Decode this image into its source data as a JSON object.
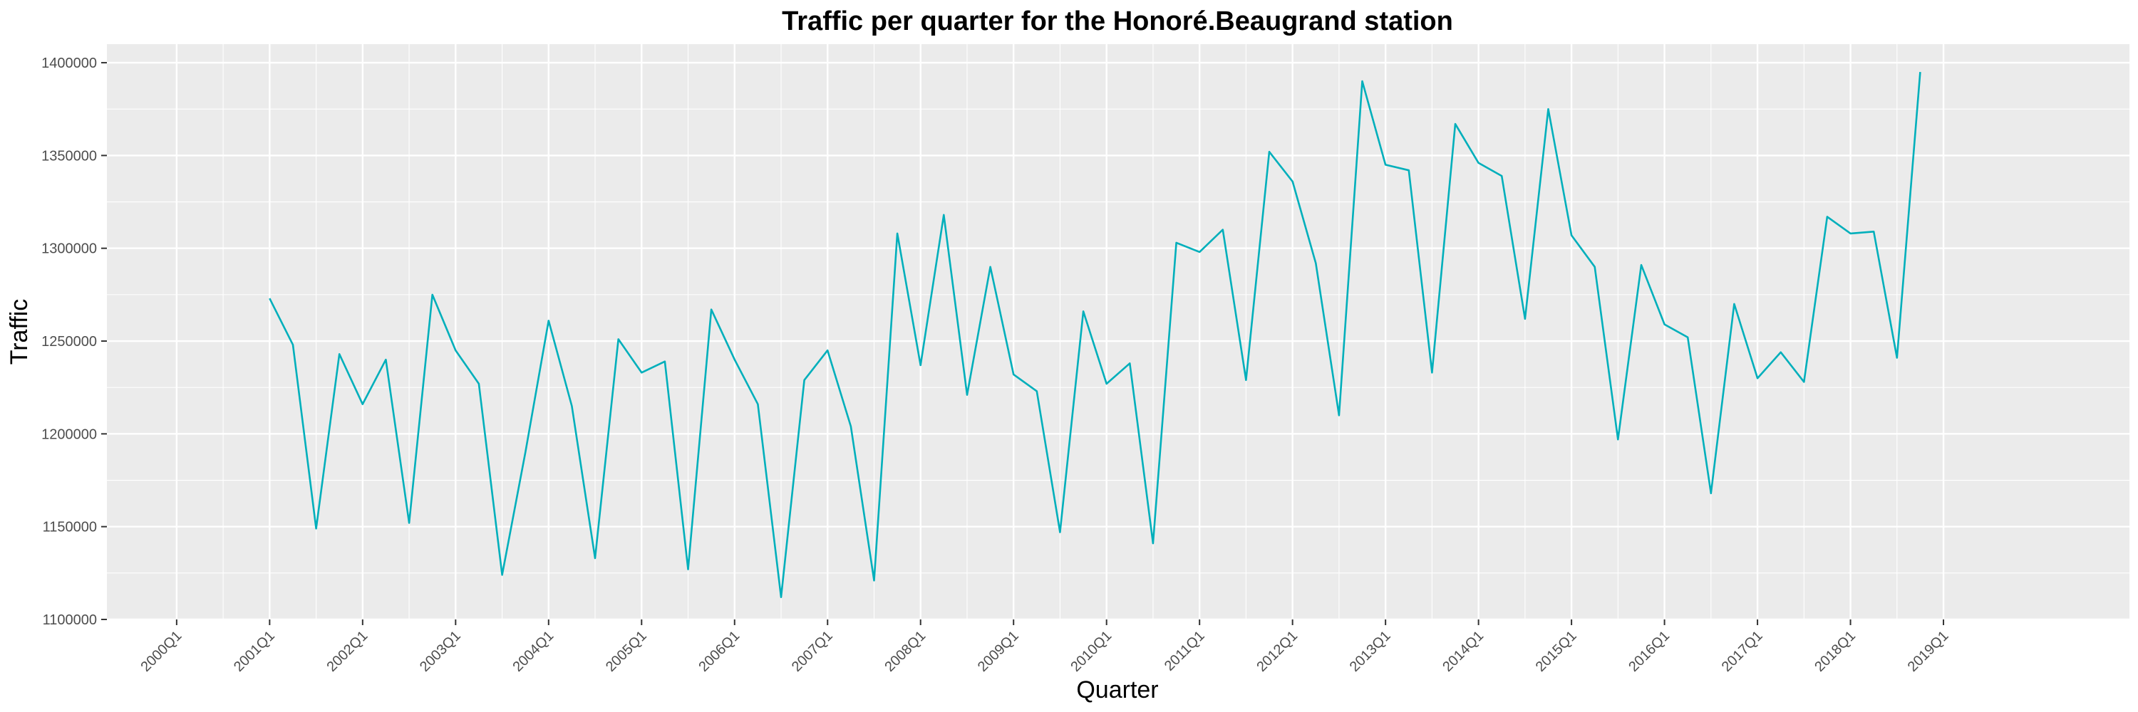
{
  "chart_data": {
    "type": "line",
    "title": "Traffic per quarter for the Honoré.Beaugrand station",
    "xlabel": "Quarter",
    "ylabel": "Traffic",
    "ylim": [
      1100000,
      1410000
    ],
    "y_ticks": [
      1100000,
      1150000,
      1200000,
      1250000,
      1300000,
      1350000,
      1400000
    ],
    "x_tick_labels": [
      "2000Q1",
      "2001Q1",
      "2002Q1",
      "2003Q1",
      "2004Q1",
      "2005Q1",
      "2006Q1",
      "2007Q1",
      "2008Q1",
      "2009Q1",
      "2010Q1",
      "2011Q1",
      "2012Q1",
      "2013Q1",
      "2014Q1",
      "2015Q1",
      "2016Q1",
      "2017Q1",
      "2018Q1",
      "2019Q1"
    ],
    "grid": true,
    "colors": {
      "line": "#00AFBB",
      "panel": "#EBEBEB",
      "grid": "#FFFFFF"
    },
    "series": [
      {
        "x": [
          "2001Q1",
          "2001Q2",
          "2001Q3",
          "2001Q4",
          "2002Q1",
          "2002Q2",
          "2002Q3",
          "2002Q4",
          "2003Q1",
          "2003Q2",
          "2003Q3",
          "2003Q4",
          "2004Q1",
          "2004Q2",
          "2004Q3",
          "2004Q4",
          "2005Q1",
          "2005Q2",
          "2005Q3",
          "2005Q4",
          "2006Q1",
          "2006Q2",
          "2006Q3",
          "2006Q4",
          "2007Q1",
          "2007Q2",
          "2007Q3",
          "2007Q4",
          "2008Q1",
          "2008Q2",
          "2008Q3",
          "2008Q4",
          "2009Q1",
          "2009Q2",
          "2009Q3",
          "2009Q4",
          "2010Q1",
          "2010Q2",
          "2010Q3",
          "2010Q4",
          "2011Q1",
          "2011Q2",
          "2011Q3",
          "2011Q4",
          "2012Q1",
          "2012Q2",
          "2012Q3",
          "2012Q4",
          "2013Q1",
          "2013Q2",
          "2013Q3",
          "2013Q4",
          "2014Q1",
          "2014Q2",
          "2014Q3",
          "2014Q4",
          "2015Q1",
          "2015Q2",
          "2015Q3",
          "2015Q4",
          "2016Q1",
          "2016Q2",
          "2016Q3",
          "2016Q4",
          "2017Q1",
          "2017Q2",
          "2017Q3",
          "2017Q4",
          "2018Q1",
          "2018Q2",
          "2018Q3",
          "2018Q4"
        ],
        "values": [
          1273000,
          1248000,
          1149000,
          1243000,
          1216000,
          1240000,
          1152000,
          1275000,
          1245000,
          1227000,
          1124000,
          1190000,
          1261000,
          1215000,
          1133000,
          1251000,
          1233000,
          1239000,
          1127000,
          1267000,
          1240000,
          1216000,
          1112000,
          1229000,
          1245000,
          1204000,
          1121000,
          1308000,
          1237000,
          1318000,
          1221000,
          1290000,
          1232000,
          1223000,
          1147000,
          1266000,
          1227000,
          1238000,
          1141000,
          1303000,
          1298000,
          1310000,
          1229000,
          1352000,
          1336000,
          1292000,
          1210000,
          1390000,
          1345000,
          1342000,
          1233000,
          1367000,
          1346000,
          1339000,
          1262000,
          1375000,
          1307000,
          1290000,
          1197000,
          1291000,
          1259000,
          1252000,
          1168000,
          1270000,
          1230000,
          1244000,
          1228000,
          1317000,
          1308000,
          1309000,
          1241000,
          1395000
        ]
      }
    ]
  }
}
